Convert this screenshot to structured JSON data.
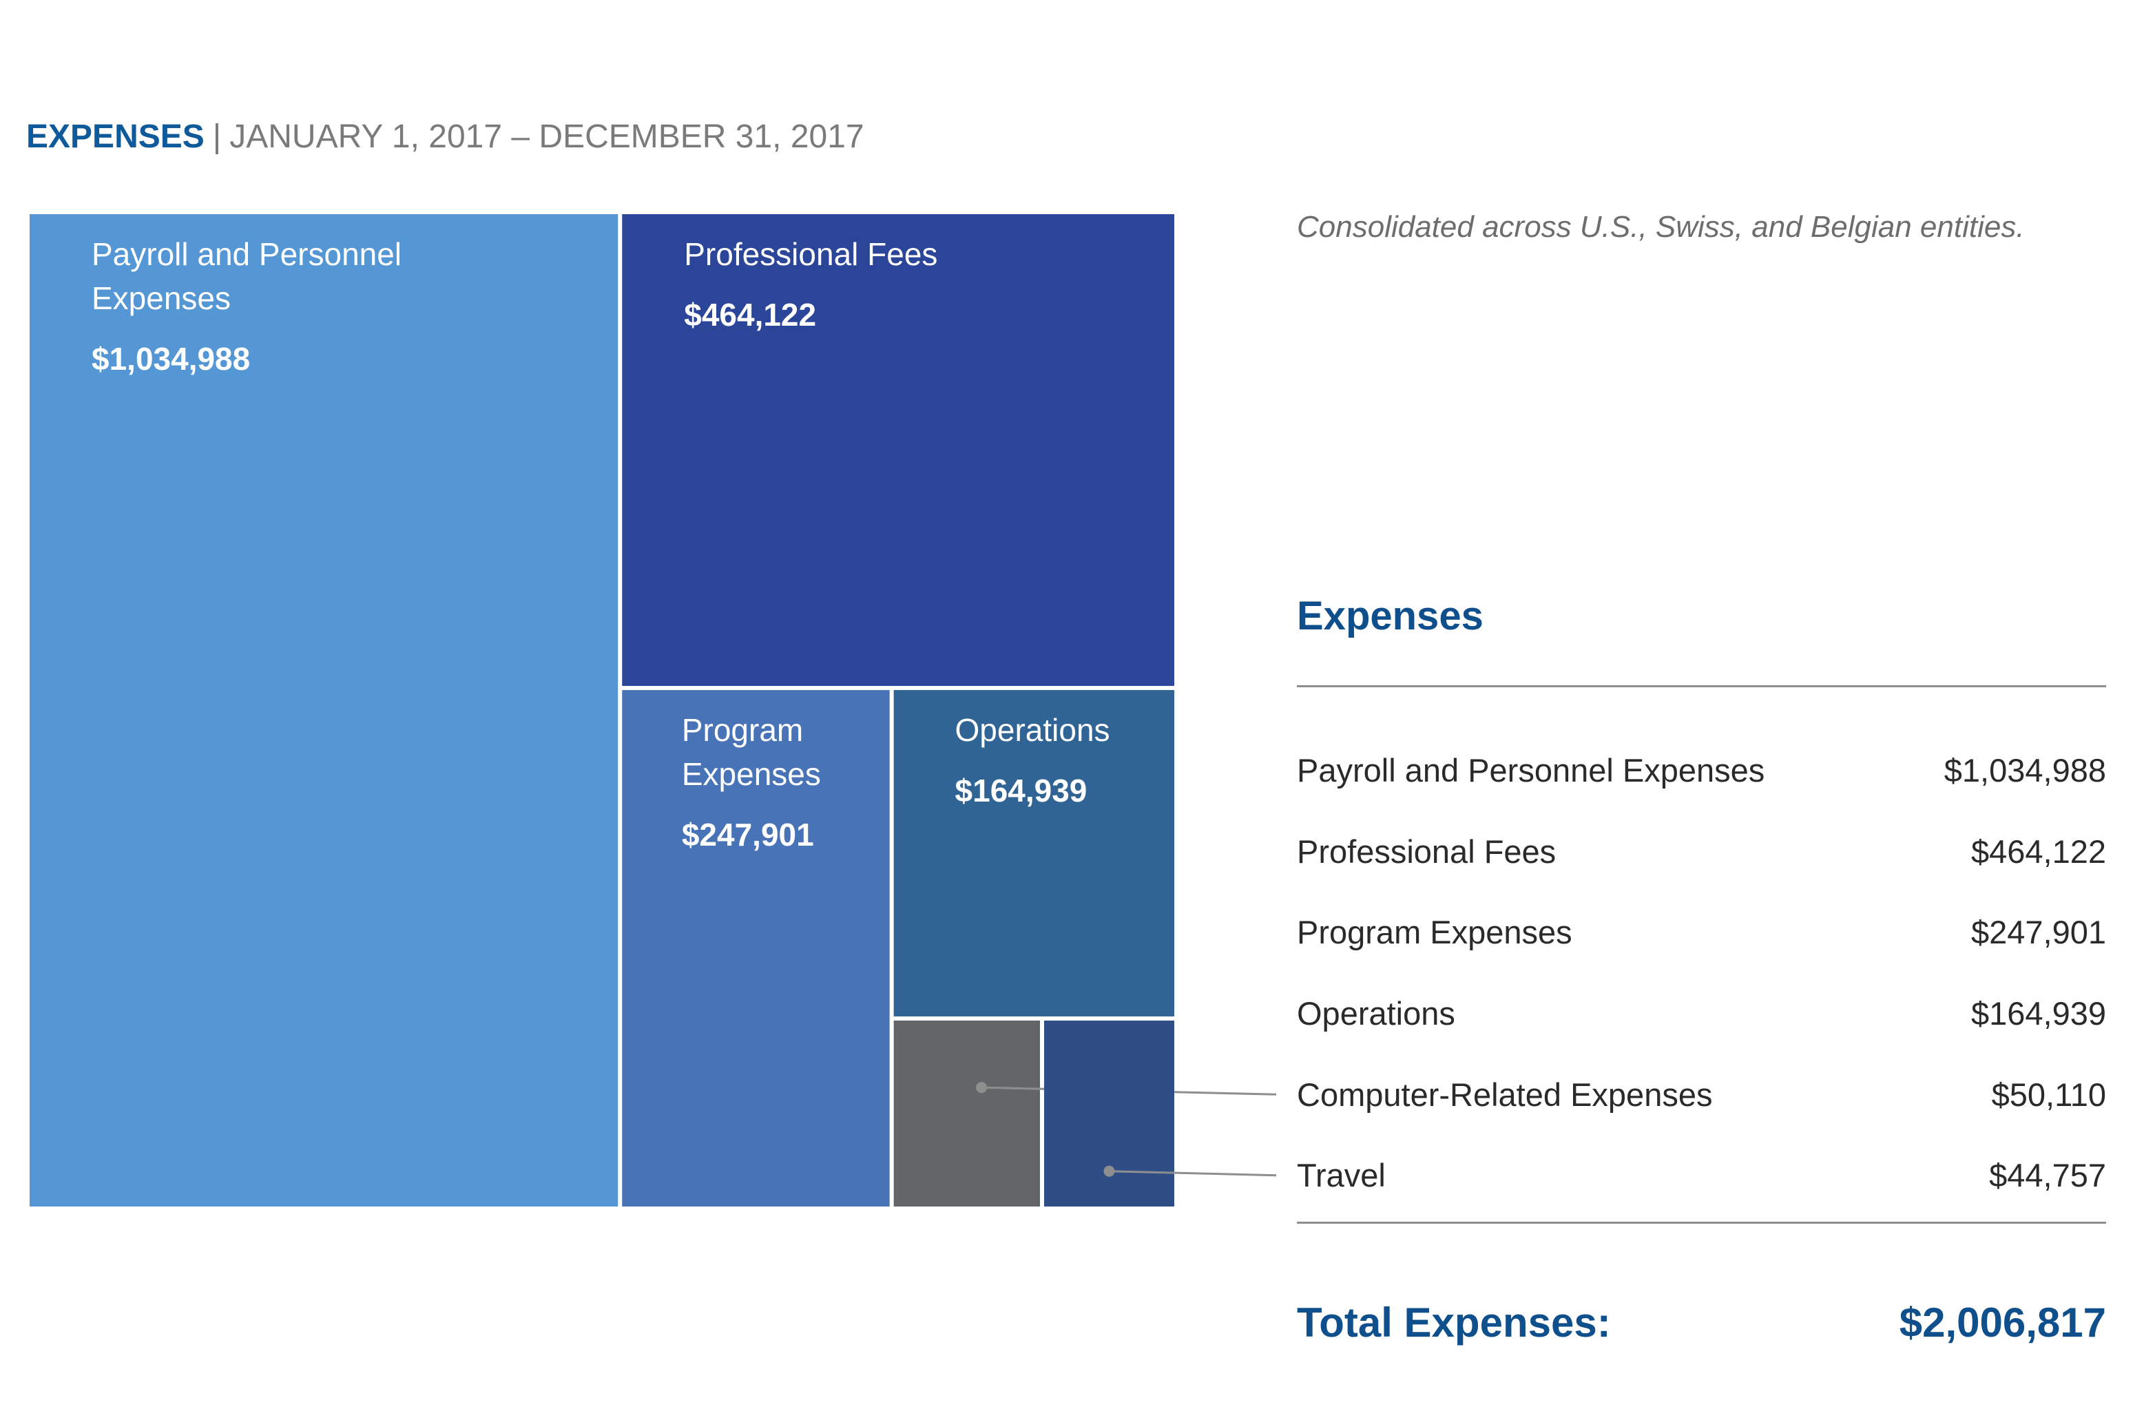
{
  "header": {
    "title": "EXPENSES",
    "separator": "|",
    "date_range": "JANUARY 1, 2017 – DECEMBER 31, 2017"
  },
  "note": "Consolidated across U.S., Swiss, and Belgian entities.",
  "summary": {
    "title": "Expenses",
    "rows": [
      {
        "label": "Payroll and Personnel Expenses",
        "value": "$1,034,988"
      },
      {
        "label": "Professional Fees",
        "value": "$464,122"
      },
      {
        "label": "Program Expenses",
        "value": "$247,901"
      },
      {
        "label": "Operations",
        "value": "$164,939"
      },
      {
        "label": "Computer-Related Expenses",
        "value": "$50,110"
      },
      {
        "label": "Travel",
        "value": "$44,757"
      }
    ],
    "total_label": "Total Expenses:",
    "total_value": "$2,006,817"
  },
  "chart_data": {
    "type": "treemap",
    "title": "EXPENSES",
    "subtitle": "JANUARY 1, 2017 – DECEMBER 31, 2017",
    "unit": "$",
    "items": [
      {
        "name": "Payroll and Personnel Expenses",
        "value": 1034988,
        "value_label": "$1,034,988",
        "label_lines": [
          "Payroll and Personnel",
          "Expenses"
        ],
        "color": "#5597d4",
        "labeled": true
      },
      {
        "name": "Professional Fees",
        "value": 464122,
        "value_label": "$464,122",
        "label_lines": [
          "Professional Fees"
        ],
        "color": "#2b4599",
        "labeled": true
      },
      {
        "name": "Program Expenses",
        "value": 247901,
        "value_label": "$247,901",
        "label_lines": [
          "Program",
          "Expenses"
        ],
        "color": "#4873b6",
        "labeled": true
      },
      {
        "name": "Operations",
        "value": 164939,
        "value_label": "$164,939",
        "label_lines": [
          "Operations"
        ],
        "color": "#2f6495",
        "labeled": true
      },
      {
        "name": "Computer-Related Expenses",
        "value": 50110,
        "value_label": "$50,110",
        "label_lines": [],
        "color": "#636569",
        "labeled": false
      },
      {
        "name": "Travel",
        "value": 44757,
        "value_label": "$44,757",
        "label_lines": [],
        "color": "#2e4e85",
        "labeled": false
      }
    ],
    "total": 2006817,
    "colors": {
      "title": "#0f5a9a",
      "leader_line": "#8e8e8e",
      "tile_text": "#ffffff"
    }
  }
}
